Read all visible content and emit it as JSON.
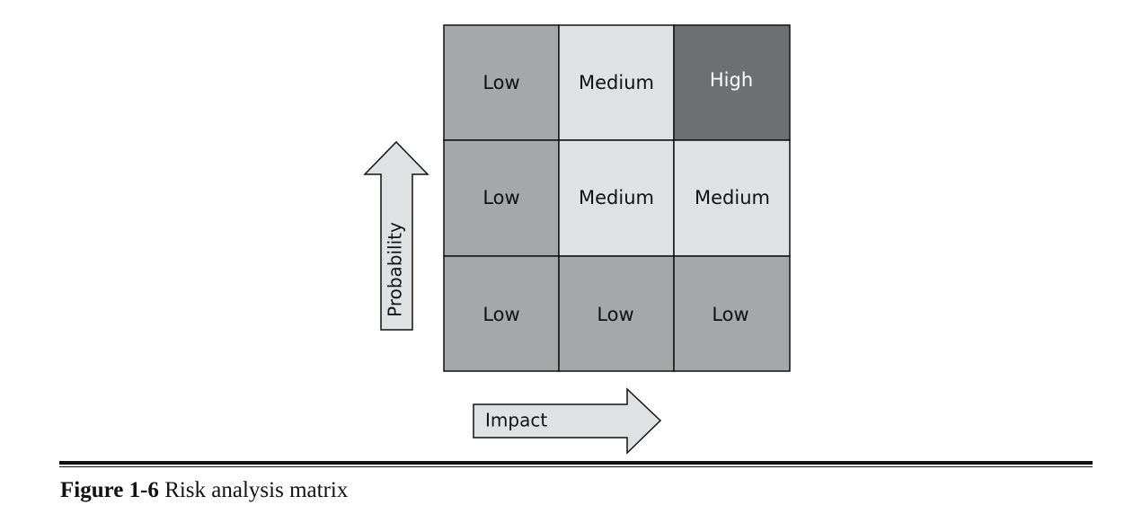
{
  "matrix": {
    "rows": [
      [
        {
          "label": "Low",
          "level": "low"
        },
        {
          "label": "Medium",
          "level": "medium"
        },
        {
          "label": "High",
          "level": "high"
        }
      ],
      [
        {
          "label": "Low",
          "level": "low"
        },
        {
          "label": "Medium",
          "level": "medium"
        },
        {
          "label": "Medium",
          "level": "medium"
        }
      ],
      [
        {
          "label": "Low",
          "level": "low"
        },
        {
          "label": "Low",
          "level": "low"
        },
        {
          "label": "Low",
          "level": "low"
        }
      ]
    ],
    "colors": {
      "low": "#a5a7a8",
      "medium": "#e0e1e2",
      "high": "#6d6f70",
      "text_dark": "#111111",
      "text_light": "#ffffff"
    }
  },
  "axes": {
    "probability_label": "Probability",
    "impact_label": "Impact",
    "arrow_fill": "#e0e1e2"
  },
  "caption": {
    "label": "Figure 1-6",
    "text": "Risk analysis matrix"
  }
}
